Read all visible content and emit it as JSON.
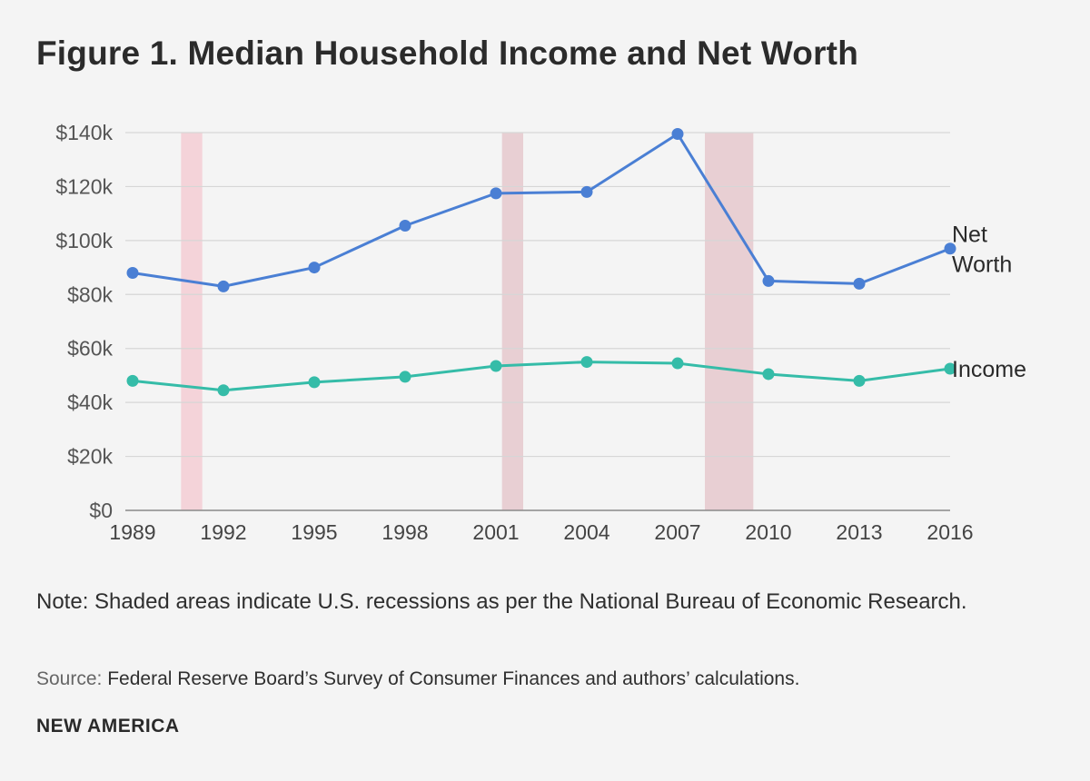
{
  "title": "Figure 1. Median Household Income and Net Worth",
  "chart_data": {
    "type": "line",
    "x": [
      "1989",
      "1992",
      "1995",
      "1998",
      "2001",
      "2004",
      "2007",
      "2010",
      "2013",
      "2016"
    ],
    "ylim": [
      0,
      140000
    ],
    "yticks": [
      {
        "value": 0,
        "label": "$0"
      },
      {
        "value": 20000,
        "label": "$20k"
      },
      {
        "value": 40000,
        "label": "$40k"
      },
      {
        "value": 60000,
        "label": "$60k"
      },
      {
        "value": 80000,
        "label": "$80k"
      },
      {
        "value": 100000,
        "label": "$100k"
      },
      {
        "value": 120000,
        "label": "$120k"
      },
      {
        "value": 140000,
        "label": "$140k"
      }
    ],
    "series": [
      {
        "name": "Net Worth",
        "label_lines": [
          "Net",
          "Worth"
        ],
        "color": "#4a7fd4",
        "values": [
          88000,
          83000,
          90000,
          105500,
          117500,
          118000,
          139500,
          85000,
          84000,
          97000
        ]
      },
      {
        "name": "Income",
        "label_lines": [
          "Income"
        ],
        "color": "#35bca8",
        "values": [
          48000,
          44500,
          47500,
          49500,
          53500,
          55000,
          54500,
          50500,
          48000,
          52500
        ]
      }
    ],
    "recessions": [
      {
        "start": 1990.6,
        "end": 1991.3,
        "color": "#f4d3d9"
      },
      {
        "start": 2001.2,
        "end": 2001.9,
        "color": "#e8cfd3"
      },
      {
        "start": 2007.9,
        "end": 2009.5,
        "color": "#e8cfd3"
      }
    ],
    "grid": true,
    "xlabel": "",
    "ylabel": ""
  },
  "note": "Note: Shaded areas indicate U.S. recessions as per the National Bureau of Economic Research.",
  "source": {
    "label": "Source:",
    "text": "Federal Reserve Board’s Survey of Consumer Finances and authors’ calculations."
  },
  "brand": "NEW AMERICA"
}
